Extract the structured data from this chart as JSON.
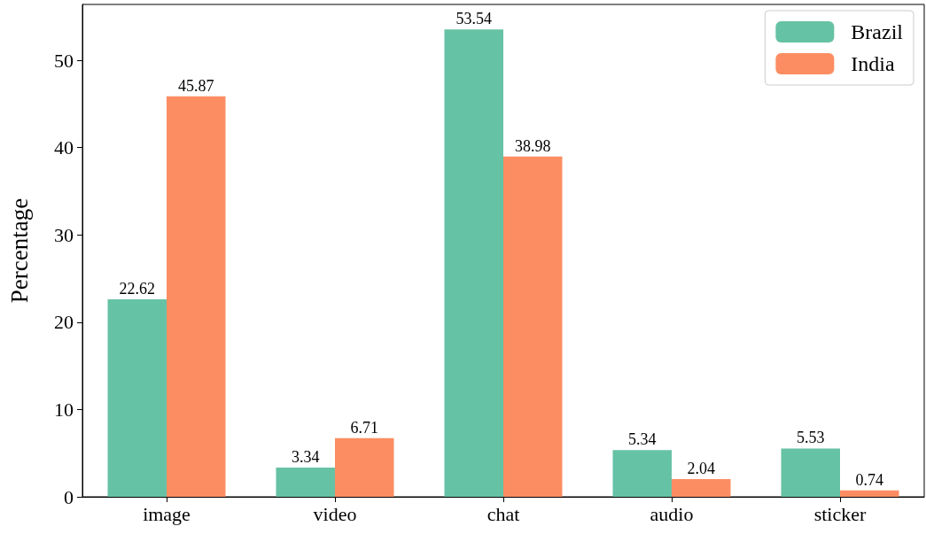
{
  "chart_data": {
    "type": "bar",
    "ylabel": "Percentage",
    "categories": [
      "image",
      "video",
      "chat",
      "audio",
      "sticker"
    ],
    "series": [
      {
        "name": "Brazil",
        "color": "#66c2a5",
        "values": [
          22.62,
          3.34,
          53.54,
          5.34,
          5.53
        ]
      },
      {
        "name": "India",
        "color": "#fc8d62",
        "values": [
          45.87,
          6.71,
          38.98,
          2.04,
          0.74
        ]
      }
    ],
    "ylim": [
      0,
      56.4
    ],
    "yticks": [
      0,
      10,
      20,
      30,
      40,
      50
    ],
    "data_labels": true,
    "legend": "top right",
    "grid": false
  }
}
